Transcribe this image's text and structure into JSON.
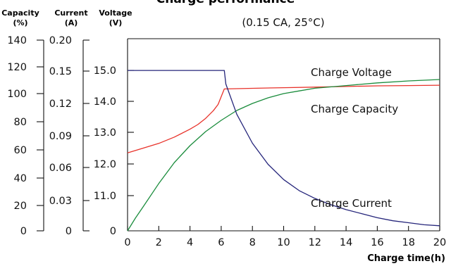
{
  "chart_data": {
    "type": "line",
    "title": "Charge performance",
    "subtitle": "(0.15 CA, 25°C)",
    "xlabel": "Charge time(h)",
    "xlim": [
      0,
      20
    ],
    "x_ticks": [
      "0",
      "2",
      "4",
      "6",
      "8",
      "10",
      "12",
      "14",
      "16",
      "18",
      "20"
    ],
    "axes": [
      {
        "id": "capacity",
        "header": [
          "Capacity",
          "(%)"
        ],
        "ticks": [
          "0",
          "20",
          "40",
          "60",
          "80",
          "100",
          "120",
          "140"
        ],
        "range": [
          0,
          140
        ]
      },
      {
        "id": "current",
        "header": [
          "Current",
          "(A)"
        ],
        "ticks": [
          "0",
          "0.03",
          "0.06",
          "0.09",
          "0.12",
          "0.15",
          "0.20"
        ],
        "range": [
          0,
          0.2
        ]
      },
      {
        "id": "voltage",
        "header": [
          "Voltage",
          "(V)"
        ],
        "ticks": [
          "0",
          "11.0",
          "12.0",
          "13.0",
          "14.0",
          "15.0"
        ]
      }
    ],
    "grid": false,
    "series": [
      {
        "name": "Charge Voltage",
        "axis": "voltage",
        "color": "#e8322a",
        "x": [
          0,
          1,
          2,
          3,
          4,
          4.5,
          5,
          5.5,
          5.8,
          6.0,
          6.2,
          8,
          10,
          12,
          14,
          16,
          18,
          20
        ],
        "y": [
          12.35,
          12.5,
          12.65,
          12.85,
          13.1,
          13.25,
          13.45,
          13.7,
          13.9,
          14.15,
          14.4,
          14.42,
          14.44,
          14.46,
          14.48,
          14.5,
          14.51,
          14.52
        ]
      },
      {
        "name": "Charge Capacity",
        "axis": "capacity",
        "color": "#1a8c3c",
        "x": [
          0,
          0.5,
          1,
          2,
          3,
          4,
          5,
          6,
          7,
          8,
          9,
          10,
          11,
          12,
          14,
          16,
          18,
          20
        ],
        "y": [
          0,
          10,
          19,
          36,
          51,
          63,
          73,
          81,
          88,
          93,
          97,
          100,
          102,
          104,
          106,
          108,
          109.5,
          110.5
        ]
      },
      {
        "name": "Charge Current",
        "axis": "current",
        "color": "#24247a",
        "x": [
          0,
          6.2,
          6.3,
          7,
          8,
          9,
          10,
          11,
          12,
          13,
          14,
          15,
          16,
          17,
          18,
          19,
          20
        ],
        "y": [
          0.151,
          0.151,
          0.138,
          0.11,
          0.083,
          0.063,
          0.049,
          0.039,
          0.032,
          0.026,
          0.021,
          0.017,
          0.013,
          0.01,
          0.008,
          0.006,
          0.005
        ]
      }
    ]
  }
}
